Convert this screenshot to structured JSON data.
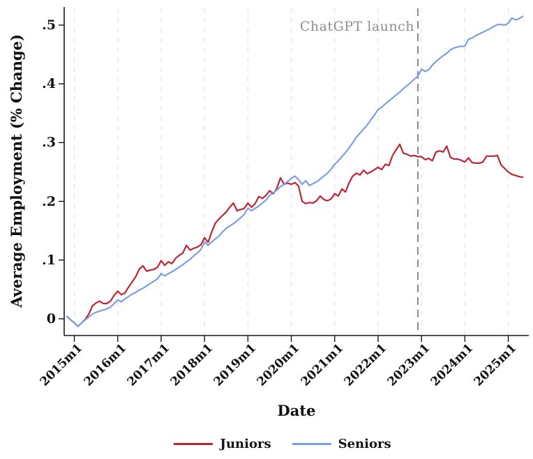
{
  "annotation": {
    "text": "ChatGPT launch",
    "color": "#8e8e8e"
  },
  "event_line": {
    "month": "2022m12",
    "label": "ChatGPT launch",
    "color": "#8a8a8a",
    "style": "dashed"
  },
  "axes": {
    "y": {
      "title": "Average Employment (% Change)",
      "ticks": [
        {
          "label": "0",
          "value": 0.0
        },
        {
          "label": ".1",
          "value": 0.1
        },
        {
          "label": ".2",
          "value": 0.2
        },
        {
          "label": ".3",
          "value": 0.3
        },
        {
          "label": ".4",
          "value": 0.4
        },
        {
          "label": ".5",
          "value": 0.5
        }
      ]
    },
    "x": {
      "title": "Date",
      "ticks": [
        "2015m1",
        "2016m1",
        "2017m1",
        "2018m1",
        "2019m1",
        "2020m1",
        "2021m1",
        "2022m1",
        "2023m1",
        "2024m1",
        "2025m1"
      ]
    }
  },
  "legend": [
    {
      "label": "Juniors",
      "color": "#bf2433"
    },
    {
      "label": "Seniors",
      "color": "#7d9ee2"
    }
  ],
  "style_colors": {
    "axis": "#161616",
    "gridline": "#e3e3e3",
    "background": "#ffffff"
  },
  "chart_data": {
    "type": "line",
    "title": "",
    "xlabel": "Date",
    "ylabel": "Average Employment (% Change)",
    "ylim": [
      -0.028,
      0.531
    ],
    "grid": "vertical-dashed-at-year-ticks",
    "legend_position": "bottom-center",
    "frequency": "monthly",
    "x": [
      "2014m11",
      "2014m12",
      "2015m1",
      "2015m2",
      "2015m3",
      "2015m4",
      "2015m5",
      "2015m6",
      "2015m7",
      "2015m8",
      "2015m9",
      "2015m10",
      "2015m11",
      "2015m12",
      "2016m1",
      "2016m2",
      "2016m3",
      "2016m4",
      "2016m5",
      "2016m6",
      "2016m7",
      "2016m8",
      "2016m9",
      "2016m10",
      "2016m11",
      "2016m12",
      "2017m1",
      "2017m2",
      "2017m3",
      "2017m4",
      "2017m5",
      "2017m6",
      "2017m7",
      "2017m8",
      "2017m9",
      "2017m10",
      "2017m11",
      "2017m12",
      "2018m1",
      "2018m2",
      "2018m3",
      "2018m4",
      "2018m5",
      "2018m6",
      "2018m7",
      "2018m8",
      "2018m9",
      "2018m10",
      "2018m11",
      "2018m12",
      "2019m1",
      "2019m2",
      "2019m3",
      "2019m4",
      "2019m5",
      "2019m6",
      "2019m7",
      "2019m8",
      "2019m9",
      "2019m10",
      "2019m11",
      "2019m12",
      "2020m1",
      "2020m2",
      "2020m3",
      "2020m4",
      "2020m5",
      "2020m6",
      "2020m7",
      "2020m8",
      "2020m9",
      "2020m10",
      "2020m11",
      "2020m12",
      "2021m1",
      "2021m2",
      "2021m3",
      "2021m4",
      "2021m5",
      "2021m6",
      "2021m7",
      "2021m8",
      "2021m9",
      "2021m10",
      "2021m11",
      "2021m12",
      "2022m1",
      "2022m2",
      "2022m3",
      "2022m4",
      "2022m5",
      "2022m6",
      "2022m7",
      "2022m8",
      "2022m9",
      "2022m10",
      "2022m11",
      "2022m12",
      "2023m1",
      "2023m2",
      "2023m3",
      "2023m4",
      "2023m5",
      "2023m6",
      "2023m7",
      "2023m8",
      "2023m9",
      "2023m10",
      "2023m11",
      "2023m12",
      "2024m1",
      "2024m2",
      "2024m3",
      "2024m4",
      "2024m5",
      "2024m6",
      "2024m7",
      "2024m8",
      "2024m9",
      "2024m10",
      "2024m11",
      "2024m12",
      "2025m1",
      "2025m2",
      "2025m3",
      "2025m4",
      "2025m5"
    ],
    "series": [
      {
        "name": "Juniors",
        "color": "#bf2433",
        "values": [
          0.004,
          -0.002,
          -0.007,
          -0.013,
          -0.007,
          -0.001,
          0.008,
          0.022,
          0.027,
          0.03,
          0.026,
          0.026,
          0.03,
          0.04,
          0.047,
          0.041,
          0.044,
          0.054,
          0.063,
          0.072,
          0.085,
          0.09,
          0.081,
          0.083,
          0.084,
          0.088,
          0.099,
          0.091,
          0.097,
          0.094,
          0.103,
          0.108,
          0.112,
          0.125,
          0.117,
          0.12,
          0.122,
          0.126,
          0.138,
          0.13,
          0.148,
          0.163,
          0.17,
          0.176,
          0.182,
          0.19,
          0.197,
          0.184,
          0.186,
          0.188,
          0.197,
          0.19,
          0.196,
          0.208,
          0.205,
          0.21,
          0.218,
          0.213,
          0.222,
          0.24,
          0.229,
          0.231,
          0.229,
          0.232,
          0.226,
          0.2,
          0.196,
          0.198,
          0.197,
          0.201,
          0.209,
          0.203,
          0.201,
          0.204,
          0.213,
          0.209,
          0.221,
          0.216,
          0.232,
          0.243,
          0.248,
          0.245,
          0.253,
          0.247,
          0.25,
          0.254,
          0.258,
          0.254,
          0.263,
          0.261,
          0.278,
          0.288,
          0.297,
          0.282,
          0.28,
          0.277,
          0.278,
          0.276,
          0.276,
          0.271,
          0.273,
          0.269,
          0.284,
          0.286,
          0.284,
          0.294,
          0.275,
          0.272,
          0.272,
          0.27,
          0.267,
          0.274,
          0.266,
          0.265,
          0.265,
          0.267,
          0.277,
          0.277,
          0.277,
          0.278,
          0.262,
          0.256,
          0.25,
          0.246,
          0.244,
          0.242,
          0.241
        ]
      },
      {
        "name": "Seniors",
        "color": "#7d9ee2",
        "values": [
          0.004,
          -0.002,
          -0.007,
          -0.013,
          -0.007,
          -0.002,
          0.003,
          0.008,
          0.011,
          0.013,
          0.015,
          0.017,
          0.02,
          0.026,
          0.032,
          0.029,
          0.034,
          0.038,
          0.042,
          0.045,
          0.049,
          0.052,
          0.056,
          0.06,
          0.064,
          0.068,
          0.077,
          0.073,
          0.077,
          0.08,
          0.084,
          0.088,
          0.092,
          0.097,
          0.101,
          0.107,
          0.112,
          0.118,
          0.131,
          0.125,
          0.131,
          0.136,
          0.141,
          0.148,
          0.154,
          0.158,
          0.162,
          0.167,
          0.172,
          0.178,
          0.188,
          0.184,
          0.188,
          0.192,
          0.197,
          0.202,
          0.21,
          0.215,
          0.219,
          0.225,
          0.229,
          0.234,
          0.239,
          0.243,
          0.237,
          0.229,
          0.235,
          0.227,
          0.23,
          0.233,
          0.238,
          0.243,
          0.248,
          0.255,
          0.263,
          0.269,
          0.276,
          0.283,
          0.291,
          0.3,
          0.309,
          0.316,
          0.323,
          0.33,
          0.339,
          0.347,
          0.356,
          0.36,
          0.366,
          0.371,
          0.376,
          0.381,
          0.386,
          0.392,
          0.397,
          0.402,
          0.408,
          0.413,
          0.425,
          0.421,
          0.424,
          0.432,
          0.438,
          0.443,
          0.448,
          0.452,
          0.458,
          0.461,
          0.463,
          0.464,
          0.464,
          0.476,
          0.478,
          0.482,
          0.485,
          0.488,
          0.491,
          0.494,
          0.498,
          0.501,
          0.501,
          0.5,
          0.503,
          0.512,
          0.509,
          0.511,
          0.515
        ]
      }
    ]
  }
}
